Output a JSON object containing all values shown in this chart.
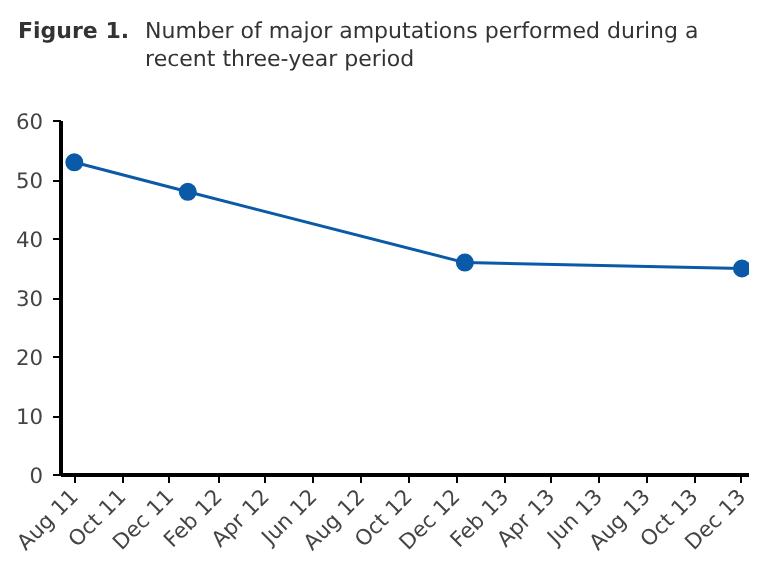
{
  "chart_data": {
    "type": "line",
    "title": "Figure 1.",
    "subtitle": "Number of major amputations performed during a recent three-year period",
    "x": [
      "2011-08",
      "2011-12-24",
      "2012-12-12",
      "2013-12"
    ],
    "series": [
      {
        "color": "#0a5aa8",
        "values": [
          53,
          48,
          36,
          35
        ]
      }
    ],
    "xlim": [
      "2011-07-15",
      "2013-12-10"
    ],
    "xticks": [
      {
        "value": "2011-08",
        "label": "Aug 11"
      },
      {
        "value": "2011-10",
        "label": "Oct 11"
      },
      {
        "value": "2011-12",
        "label": "Dec 11"
      },
      {
        "value": "2012-02",
        "label": "Feb 12"
      },
      {
        "value": "2012-04",
        "label": "Apr 12"
      },
      {
        "value": "2012-06",
        "label": "Jun 12"
      },
      {
        "value": "2012-08",
        "label": "Aug 12"
      },
      {
        "value": "2012-10",
        "label": "Oct 12"
      },
      {
        "value": "2012-12",
        "label": "Dec 12"
      },
      {
        "value": "2013-02",
        "label": "Feb 13"
      },
      {
        "value": "2013-04",
        "label": "Apr 13"
      },
      {
        "value": "2013-06",
        "label": "Jun 13"
      },
      {
        "value": "2013-08",
        "label": "Aug 13"
      },
      {
        "value": "2013-10",
        "label": "Oct 13"
      },
      {
        "value": "2013-12",
        "label": "Dec 13"
      }
    ],
    "ylim": [
      0,
      60
    ],
    "yticks": [
      0,
      10,
      20,
      30,
      40,
      50,
      60
    ],
    "grid": false,
    "marker": "circle",
    "line_style": "solid"
  }
}
